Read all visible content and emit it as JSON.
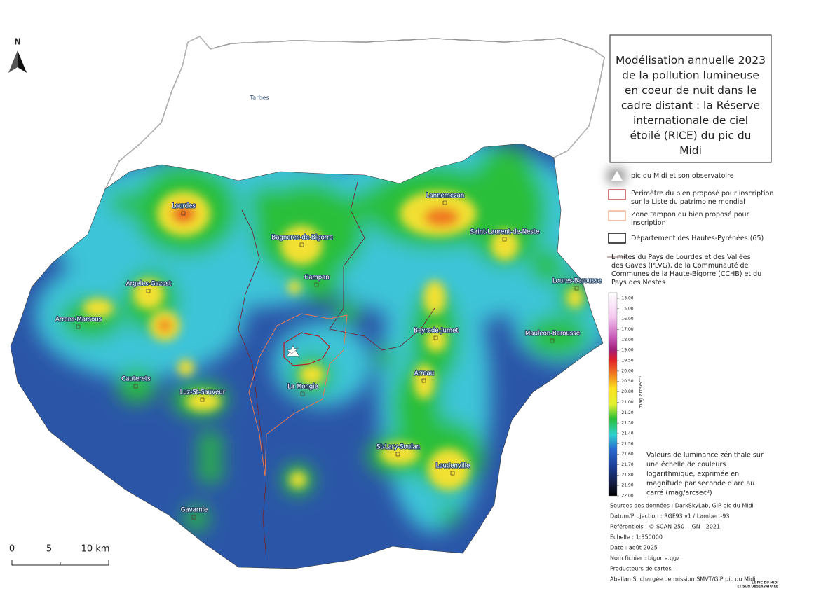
{
  "title": "Modélisation annuelle 2023 de la pollution lumineuse en coeur de nuit dans le cadre distant : la Réserve internationale de ciel étoilé (RICE) du pic du Midi",
  "north": "N",
  "places": [
    "Tarbes",
    "Lourdes",
    "Lannemezan",
    "Bagneres-de-Bigorre",
    "Saint-Laurent-de-Neste",
    "Campan",
    "Argeles-Gazost",
    "Loures-Barousse",
    "Arrens-Marsous",
    "Beyrede-Jumet",
    "Mauleon-Barousse",
    "Cauterets",
    "Arreau",
    "La Mongie",
    "Luz-St-Sauveur",
    "St-Lary-Soulan",
    "Loudenville",
    "Gavarnie"
  ],
  "legend": [
    "pic du Midi et son observatoire",
    "Périmètre du bien proposé pour inscription sur la Liste du patrimoine mondial",
    "Zone tampon du bien proposé pour inscription",
    "Département des Hautes-Pyrénées (65)",
    "Limites du Pays de Lourdes et des Vallées des Gaves (PLVG), de la Communauté de Communes de la Haute-Bigorre (CCHB) et du Pays des Nestes"
  ],
  "color_scale": {
    "label": "mag.arcsec⁻²",
    "ticks": [
      {
        "value": 13,
        "label": "13.00"
      },
      {
        "value": 15,
        "label": "15.00"
      },
      {
        "value": 16,
        "label": "16.00"
      },
      {
        "value": 17,
        "label": "17.00"
      },
      {
        "value": 18,
        "label": "18.00"
      },
      {
        "value": 19,
        "label": "19.00"
      },
      {
        "value": 19.5,
        "label": "19.50"
      },
      {
        "value": 20,
        "label": "20.00"
      },
      {
        "value": 20.5,
        "label": "20.50"
      },
      {
        "value": 20.8,
        "label": "20.80"
      },
      {
        "value": 21,
        "label": "21.00"
      },
      {
        "value": 21.2,
        "label": "21.20"
      },
      {
        "value": 21.3,
        "label": "21.30"
      },
      {
        "value": 21.4,
        "label": "21.40"
      },
      {
        "value": 21.5,
        "label": "21.50"
      },
      {
        "value": 21.6,
        "label": "21.60"
      },
      {
        "value": 21.7,
        "label": "21.70"
      },
      {
        "value": 21.8,
        "label": "21.80"
      },
      {
        "value": 21.9,
        "label": "21.90"
      },
      {
        "value": 22,
        "label": "22.00"
      }
    ],
    "description": [
      "Valeurs de luminance zénithale sur",
      "une échelle de couleurs",
      "logarithmique, exprimée en",
      "magnitude par seconde d'arc au",
      "carré (mag/arcsec²)"
    ]
  },
  "scale_bar": [
    "0",
    "5",
    "10 km"
  ],
  "sources": [
    "Sources des données : DarkSkyLab, GIP pic du Midi",
    "Datum/Projection : RGF93 v1 / Lambert-93",
    "Référentiels : © SCAN-250 - IGN - 2021",
    "Echelle : 1:350000",
    "Date : août 2025",
    "Nom fichier : bigorre.qgz",
    "Producteurs de cartes :",
    "Abellan S. chargée de mission SMVT/GIP pic du Midi"
  ],
  "logo": [
    "LE PIC DU MIDI",
    "ET SON OBSERVATOIRE"
  ]
}
